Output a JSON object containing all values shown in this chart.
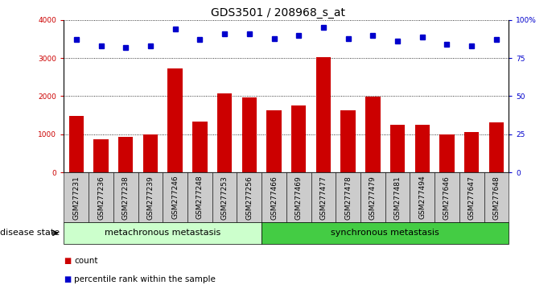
{
  "title": "GDS3501 / 208968_s_at",
  "samples": [
    "GSM277231",
    "GSM277236",
    "GSM277238",
    "GSM277239",
    "GSM277246",
    "GSM277248",
    "GSM277253",
    "GSM277256",
    "GSM277466",
    "GSM277469",
    "GSM277477",
    "GSM277478",
    "GSM277479",
    "GSM277481",
    "GSM277494",
    "GSM277646",
    "GSM277647",
    "GSM277648"
  ],
  "counts": [
    1480,
    870,
    940,
    1000,
    2720,
    1330,
    2080,
    1960,
    1640,
    1760,
    3030,
    1640,
    1980,
    1260,
    1260,
    1000,
    1050,
    1320
  ],
  "percentiles": [
    87,
    83,
    82,
    83,
    94,
    87,
    91,
    91,
    88,
    90,
    95,
    88,
    90,
    86,
    89,
    84,
    83,
    87
  ],
  "bar_color": "#cc0000",
  "dot_color": "#0000cc",
  "ylim_left": [
    0,
    4000
  ],
  "ylim_right": [
    0,
    100
  ],
  "yticks_left": [
    0,
    1000,
    2000,
    3000,
    4000
  ],
  "yticks_right": [
    0,
    25,
    50,
    75,
    100
  ],
  "grid_values": [
    1000,
    2000,
    3000,
    4000
  ],
  "group1_label": "metachronous metastasis",
  "group2_label": "synchronous metastasis",
  "group1_count": 8,
  "group2_count": 10,
  "group1_color": "#ccffcc",
  "group2_color": "#44cc44",
  "disease_state_label": "disease state",
  "legend_count_label": "count",
  "legend_percentile_label": "percentile rank within the sample",
  "title_fontsize": 10,
  "tick_fontsize": 6.5,
  "label_fontsize": 8,
  "xtick_bg_color": "#cccccc",
  "white": "#ffffff"
}
